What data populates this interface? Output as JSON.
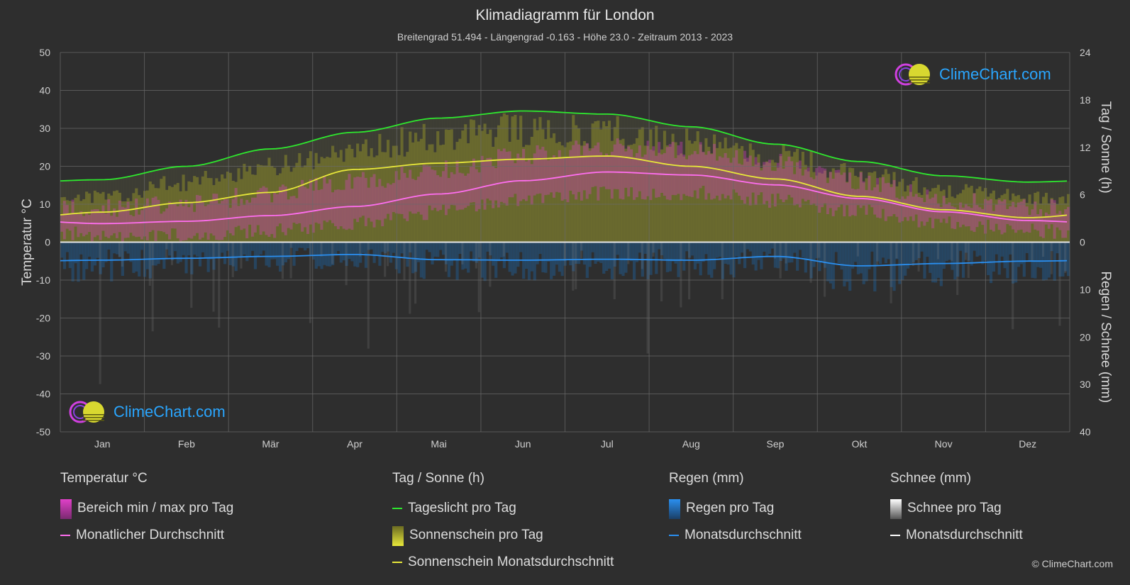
{
  "title": "Klimadiagramm für London",
  "subtitle": "Breitengrad 51.494 - Längengrad -0.163 - Höhe 23.0 - Zeitraum 2013 - 2023",
  "brand": "ClimeChart.com",
  "copyright": "© ClimeChart.com",
  "colors": {
    "background": "#2e2e2e",
    "daylight": "#2ee82e",
    "sunshine_avg": "#e8e83a",
    "temp_avg": "#ff6ef0",
    "rain_avg": "#2a8ff0",
    "temp_range": "#e040c8",
    "sunshine_bar": "#8c8c2a",
    "rain_bar": "#1f5f9a",
    "snow_bar": "#9a9a9a"
  },
  "chart_data": {
    "type": "line",
    "categories": [
      "Jan",
      "Feb",
      "Mär",
      "Apr",
      "Mai",
      "Jun",
      "Jul",
      "Aug",
      "Sep",
      "Okt",
      "Nov",
      "Dez"
    ],
    "y_left": {
      "label": "Temperatur °C",
      "min": -50,
      "max": 50,
      "ticks": [
        50,
        40,
        30,
        20,
        10,
        0,
        -10,
        -20,
        -30,
        -40,
        -50
      ]
    },
    "y_right_top": {
      "label": "Tag / Sonne (h)",
      "min": 0,
      "max": 24,
      "ticks": [
        24,
        18,
        12,
        6,
        0
      ]
    },
    "y_right_bottom": {
      "label": "Regen / Schnee (mm)",
      "min": 0,
      "max": 40,
      "ticks": [
        0,
        10,
        20,
        30,
        40
      ]
    },
    "grid": true,
    "series": [
      {
        "name": "Tageslicht pro Tag",
        "axis": "hours",
        "values": [
          7.9,
          9.6,
          11.8,
          13.9,
          15.7,
          16.6,
          16.2,
          14.6,
          12.4,
          10.2,
          8.4,
          7.6
        ]
      },
      {
        "name": "Sonnenschein Monatsdurchschnitt",
        "axis": "hours",
        "values": [
          3.8,
          5.0,
          6.3,
          9.2,
          10.0,
          10.5,
          10.9,
          9.6,
          8.0,
          5.8,
          4.1,
          3.1
        ]
      },
      {
        "name": "Monatlicher Durchschnitt",
        "axis": "temperature",
        "values": [
          4.9,
          5.5,
          7.0,
          9.4,
          12.7,
          16.2,
          18.5,
          17.7,
          15.1,
          11.5,
          8.0,
          5.7
        ]
      },
      {
        "name": "Monatsdurchschnitt",
        "axis": "rain",
        "values": [
          3.8,
          3.4,
          3.0,
          2.6,
          3.7,
          3.8,
          3.6,
          3.8,
          3.0,
          5.0,
          4.5,
          4.0
        ]
      }
    ],
    "temp_range": {
      "min": [
        2.0,
        2.0,
        3.0,
        5.0,
        8.0,
        11.0,
        13.0,
        13.0,
        11.0,
        8.0,
        5.0,
        3.0
      ],
      "max": [
        9.0,
        10.0,
        13.0,
        16.0,
        19.0,
        23.0,
        25.0,
        24.0,
        21.0,
        16.0,
        11.0,
        9.0
      ]
    },
    "sunshine_daily_max": [
      6.0,
      8.0,
      10.5,
      12.5,
      14.0,
      15.0,
      14.8,
      13.5,
      11.5,
      9.0,
      7.0,
      6.0
    ]
  },
  "legend": {
    "temperature": {
      "heading": "Temperatur °C",
      "items": [
        "Bereich min / max pro Tag",
        "Monatlicher Durchschnitt"
      ]
    },
    "sun": {
      "heading": "Tag / Sonne (h)",
      "items": [
        "Tageslicht pro Tag",
        "Sonnenschein pro Tag",
        "Sonnenschein Monatsdurchschnitt"
      ]
    },
    "rain": {
      "heading": "Regen (mm)",
      "items": [
        "Regen pro Tag",
        "Monatsdurchschnitt"
      ]
    },
    "snow": {
      "heading": "Schnee (mm)",
      "items": [
        "Schnee pro Tag",
        "Monatsdurchschnitt"
      ]
    }
  }
}
